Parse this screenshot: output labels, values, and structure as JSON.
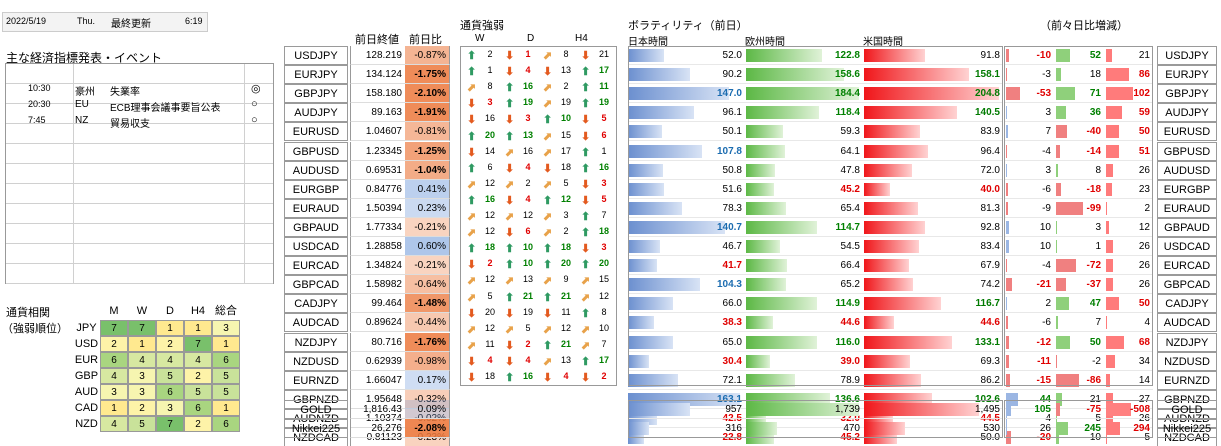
{
  "header": {
    "date": "2022/5/19",
    "weekday": "Thu.",
    "updated_label": "最終更新",
    "time": "6:19"
  },
  "events": {
    "title": "主な経済指標発表・イベント",
    "rows": [
      {
        "time": "10:30",
        "country": "豪州",
        "name": "失業率",
        "mark": "◎"
      },
      {
        "time": "20:30",
        "country": "EU",
        "name": "ECB理事会議事要旨公表",
        "mark": "○"
      },
      {
        "time": "7:45",
        "country": "NZ",
        "name": "貿易収支",
        "mark": "○"
      }
    ]
  },
  "corr": {
    "title_lines": [
      "通貨相関",
      "（強弱順位）"
    ],
    "headers": [
      "M",
      "W",
      "D",
      "H4",
      "総合"
    ],
    "rows": [
      {
        "cur": "JPY",
        "vals": [
          "7",
          "7",
          "1",
          "1",
          "3"
        ]
      },
      {
        "cur": "USD",
        "vals": [
          "2",
          "1",
          "2",
          "7",
          "1"
        ]
      },
      {
        "cur": "EUR",
        "vals": [
          "6",
          "4",
          "4",
          "4",
          "6"
        ]
      },
      {
        "cur": "GBP",
        "vals": [
          "4",
          "3",
          "5",
          "2",
          "5"
        ]
      },
      {
        "cur": "AUD",
        "vals": [
          "3",
          "3",
          "6",
          "5",
          "5"
        ]
      },
      {
        "cur": "CAD",
        "vals": [
          "1",
          "2",
          "3",
          "6",
          "1"
        ]
      },
      {
        "cur": "NZD",
        "vals": [
          "4",
          "5",
          "7",
          "2",
          "6"
        ]
      }
    ]
  },
  "price_headers": {
    "close": "前日終値",
    "change": "前日比"
  },
  "strength": {
    "title": "通貨強弱",
    "headers": [
      "W",
      "D",
      "H4"
    ]
  },
  "vol": {
    "title": "ボラティリティ（前日）",
    "asia": "日本時間",
    "eu": "欧州時間",
    "us": "米国時間",
    "diff_title": "（前々日比増減）"
  },
  "pairs": [
    {
      "name": "USDJPY",
      "close": "128.219",
      "chg": "-0.87%",
      "s": [
        [
          "up",
          "2"
        ],
        [
          "dn",
          "1"
        ],
        [
          "fl",
          "8"
        ],
        [
          "dn",
          "21"
        ]
      ],
      "v": [
        "52.0",
        "122.8",
        "91.8"
      ],
      "d": [
        "-10",
        "52",
        "21"
      ]
    },
    {
      "name": "EURJPY",
      "close": "134.124",
      "chg": "-1.75%",
      "s": [
        [
          "up",
          "1"
        ],
        [
          "dn",
          "4"
        ],
        [
          "dn",
          "13"
        ],
        [
          "up",
          "17"
        ]
      ],
      "v": [
        "90.2",
        "158.6",
        "158.1"
      ],
      "d": [
        "-3",
        "18",
        "86"
      ]
    },
    {
      "name": "GBPJPY",
      "close": "158.180",
      "chg": "-2.10%",
      "s": [
        [
          "fl",
          "8"
        ],
        [
          "up",
          "16"
        ],
        [
          "fl",
          "2"
        ],
        [
          "up",
          "11"
        ]
      ],
      "v": [
        "147.0",
        "184.4",
        "204.8"
      ],
      "d": [
        "-53",
        "71",
        "102"
      ]
    },
    {
      "name": "AUDJPY",
      "close": "89.163",
      "chg": "-1.91%",
      "s": [
        [
          "dn",
          "3"
        ],
        [
          "up",
          "19"
        ],
        [
          "fl",
          "19"
        ],
        [
          "up",
          "19"
        ]
      ],
      "v": [
        "96.1",
        "118.4",
        "140.5"
      ],
      "d": [
        "3",
        "36",
        "59"
      ]
    },
    {
      "name": "EURUSD",
      "close": "1.04607",
      "chg": "-0.81%",
      "s": [
        [
          "dn",
          "16"
        ],
        [
          "dn",
          "3"
        ],
        [
          "up",
          "10"
        ],
        [
          "dn",
          "5"
        ]
      ],
      "v": [
        "50.1",
        "59.3",
        "83.9"
      ],
      "d": [
        "7",
        "-40",
        "50"
      ]
    },
    {
      "name": "GBPUSD",
      "close": "1.23345",
      "chg": "-1.25%",
      "s": [
        [
          "up",
          "20"
        ],
        [
          "up",
          "13"
        ],
        [
          "fl",
          "15"
        ],
        [
          "dn",
          "6"
        ]
      ],
      "v": [
        "107.8",
        "64.1",
        "96.4"
      ],
      "d": [
        "-4",
        "-14",
        "51"
      ]
    },
    {
      "name": "AUDUSD",
      "close": "0.69531",
      "chg": "-1.04%",
      "s": [
        [
          "dn",
          "14"
        ],
        [
          "fl",
          "16"
        ],
        [
          "fl",
          "17"
        ],
        [
          "up",
          "1"
        ]
      ],
      "v": [
        "50.8",
        "47.8",
        "72.0"
      ],
      "d": [
        "3",
        "8",
        "26"
      ]
    },
    {
      "name": "EURGBP",
      "close": "0.84776",
      "chg": "0.41%",
      "s": [
        [
          "up",
          "6"
        ],
        [
          "dn",
          "4"
        ],
        [
          "dn",
          "18"
        ],
        [
          "up",
          "16"
        ]
      ],
      "v": [
        "51.6",
        "45.2",
        "40.0"
      ],
      "d": [
        "-6",
        "-18",
        "23"
      ]
    },
    {
      "name": "EURAUD",
      "close": "1.50394",
      "chg": "0.23%",
      "s": [
        [
          "fl",
          "12"
        ],
        [
          "fl",
          "2"
        ],
        [
          "fl",
          "5"
        ],
        [
          "dn",
          "3"
        ]
      ],
      "v": [
        "78.3",
        "65.4",
        "81.3"
      ],
      "d": [
        "-9",
        "-99",
        "2"
      ]
    },
    {
      "name": "GBPAUD",
      "close": "1.77334",
      "chg": "-0.21%",
      "s": [
        [
          "up",
          "16"
        ],
        [
          "dn",
          "4"
        ],
        [
          "up",
          "12"
        ],
        [
          "dn",
          "5"
        ]
      ],
      "v": [
        "140.7",
        "114.7",
        "92.8"
      ],
      "d": [
        "10",
        "3",
        "12"
      ]
    },
    {
      "name": "USDCAD",
      "close": "1.28858",
      "chg": "0.60%",
      "s": [
        [
          "fl",
          "12"
        ],
        [
          "fl",
          "12"
        ],
        [
          "fl",
          "3"
        ],
        [
          "up",
          "7"
        ]
      ],
      "v": [
        "46.7",
        "54.5",
        "83.4"
      ],
      "d": [
        "10",
        "1",
        "26"
      ]
    },
    {
      "name": "EURCAD",
      "close": "1.34824",
      "chg": "-0.21%",
      "s": [
        [
          "fl",
          "12"
        ],
        [
          "dn",
          "6"
        ],
        [
          "fl",
          "2"
        ],
        [
          "up",
          "18"
        ]
      ],
      "v": [
        "41.7",
        "66.4",
        "67.9"
      ],
      "d": [
        "-4",
        "-72",
        "26"
      ]
    },
    {
      "name": "GBPCAD",
      "close": "1.58982",
      "chg": "-0.64%",
      "s": [
        [
          "up",
          "18"
        ],
        [
          "up",
          "10"
        ],
        [
          "up",
          "18"
        ],
        [
          "dn",
          "3"
        ]
      ],
      "v": [
        "104.3",
        "65.2",
        "74.2"
      ],
      "d": [
        "-21",
        "-37",
        "26"
      ]
    },
    {
      "name": "CADJPY",
      "close": "99.464",
      "chg": "-1.48%",
      "s": [
        [
          "dn",
          "2"
        ],
        [
          "up",
          "10"
        ],
        [
          "up",
          "20"
        ],
        [
          "up",
          "20"
        ]
      ],
      "v": [
        "66.0",
        "114.9",
        "116.7"
      ],
      "d": [
        "2",
        "47",
        "50"
      ]
    },
    {
      "name": "AUDCAD",
      "close": "0.89624",
      "chg": "-0.44%",
      "s": [
        [
          "fl",
          "12"
        ],
        [
          "fl",
          "13"
        ],
        [
          "fl",
          "9"
        ],
        [
          "fl",
          "15"
        ]
      ],
      "v": [
        "38.3",
        "44.6",
        "44.6"
      ],
      "d": [
        "-6",
        "7",
        "4"
      ]
    },
    {
      "name": "NZDJPY",
      "close": "80.716",
      "chg": "-1.76%",
      "s": [
        [
          "fl",
          "5"
        ],
        [
          "up",
          "21"
        ],
        [
          "up",
          "21"
        ],
        [
          "fl",
          "12"
        ]
      ],
      "v": [
        "65.0",
        "116.0",
        "133.1"
      ],
      "d": [
        "-12",
        "50",
        "68"
      ]
    },
    {
      "name": "NZDUSD",
      "close": "0.62939",
      "chg": "-0.98%",
      "s": [
        [
          "dn",
          "20"
        ],
        [
          "dn",
          "19"
        ],
        [
          "dn",
          "11"
        ],
        [
          "up",
          "8"
        ]
      ],
      "v": [
        "30.4",
        "39.0",
        "69.3"
      ],
      "d": [
        "-11",
        "-2",
        "34"
      ]
    },
    {
      "name": "EURNZD",
      "close": "1.66047",
      "chg": "0.17%",
      "s": [
        [
          "fl",
          "12"
        ],
        [
          "fl",
          "5"
        ],
        [
          "fl",
          "12"
        ],
        [
          "fl",
          "10"
        ]
      ],
      "v": [
        "72.1",
        "78.9",
        "86.2"
      ],
      "d": [
        "-15",
        "-86",
        "14"
      ]
    },
    {
      "name": "GBPNZD",
      "close": "1.95648",
      "chg": "-0.32%",
      "s": [
        [
          "fl",
          "11"
        ],
        [
          "dn",
          "2"
        ],
        [
          "up",
          "21"
        ],
        [
          "fl",
          "7"
        ]
      ],
      "v": [
        "163.1",
        "136.6",
        "102.6"
      ],
      "d": [
        "44",
        "21",
        "27"
      ]
    },
    {
      "name": "AUDNZD",
      "close": "1.10374",
      "chg": "-0.02%",
      "s": [
        [
          "dn",
          "4"
        ],
        [
          "dn",
          "4"
        ],
        [
          "fl",
          "13"
        ],
        [
          "up",
          "17"
        ]
      ],
      "v": [
        "42.5",
        "32.0",
        "44.5"
      ],
      "d": [
        "4",
        "5",
        "26"
      ]
    },
    {
      "name": "NZDCAD",
      "close": "0.81123",
      "chg": "-0.23%",
      "s": [
        [
          "dn",
          "18"
        ],
        [
          "up",
          "16"
        ],
        [
          "dn",
          "4"
        ],
        [
          "dn",
          "2"
        ]
      ],
      "v": [
        "22.8",
        "45.2",
        "50.0"
      ],
      "d": [
        "-20",
        "10",
        "5"
      ]
    }
  ],
  "extra": [
    {
      "name": "GOLD",
      "close": "1,816.43",
      "chg": "0.09%",
      "v": [
        "957",
        "1,739",
        "1,495"
      ],
      "d": [
        "105",
        "-75",
        "-508"
      ]
    },
    {
      "name": "Nikkei225",
      "close": "26,276",
      "chg": "-2.08%",
      "v": [
        "316",
        "470",
        "530"
      ],
      "d": [
        "26",
        "245",
        "294"
      ]
    }
  ]
}
